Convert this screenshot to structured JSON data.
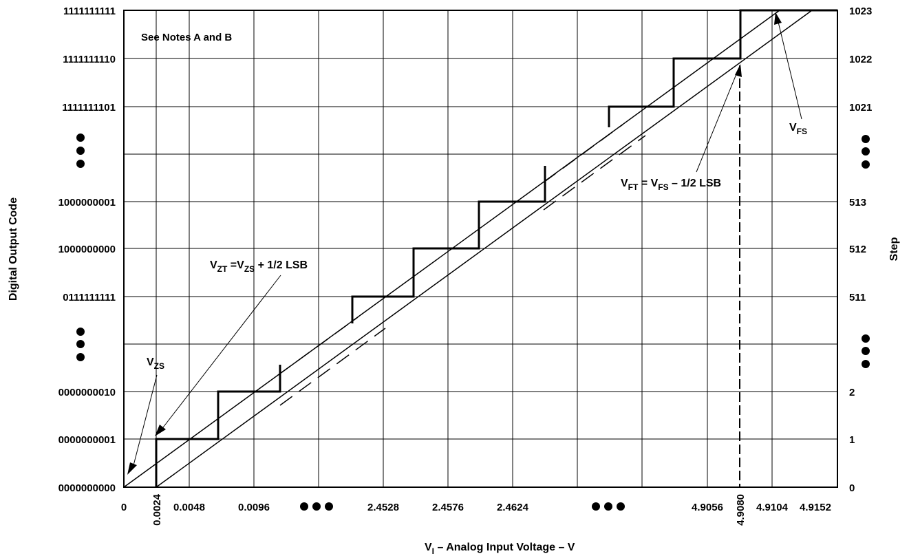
{
  "chart_data": {
    "type": "line",
    "title": "",
    "notes_label": "See Notes A and B",
    "xlabel": {
      "main": "V",
      "sub": "I",
      "rest": " – Analog Input Voltage – V"
    },
    "ylabel_left": "Digital Output Code",
    "ylabel_right": "Step",
    "x_ticks": [
      "0",
      "0.0024",
      "0.0048",
      "0.0096",
      "2.4528",
      "2.4576",
      "2.4624",
      "4.9056",
      "4.9080",
      "4.9104",
      "4.9152"
    ],
    "y_codes": [
      "0000000000",
      "0000000001",
      "0000000010",
      "0111111111",
      "1000000000",
      "1000000001",
      "1111111101",
      "1111111110",
      "1111111111"
    ],
    "y_steps": [
      "0",
      "1",
      "2",
      "511",
      "512",
      "513",
      "1021",
      "1022",
      "1023"
    ],
    "staircase": [
      {
        "step": 1,
        "x_start": 0.0024,
        "x_end": 0.0072
      },
      {
        "step": 2,
        "x_start": 0.0072,
        "x_end": 0.012
      },
      {
        "step": 511,
        "x_start": 2.448,
        "x_end": 2.4528
      },
      {
        "step": 512,
        "x_start": 2.4528,
        "x_end": 2.4576
      },
      {
        "step": 513,
        "x_start": 2.4576,
        "x_end": 2.4624
      },
      {
        "step": 1021,
        "x_start": 4.9008,
        "x_end": 4.9056
      },
      {
        "step": 1022,
        "x_start": 4.9056,
        "x_end": 4.908
      },
      {
        "step": 1023,
        "x_start": 4.908,
        "x_end": 4.9152
      }
    ],
    "annotations": [
      {
        "id": "vzs",
        "main": "V",
        "sub": "ZS",
        "rest": ""
      },
      {
        "id": "vzt",
        "main": "V",
        "sub": "ZT",
        "rest": " =V",
        "sub2": "ZS",
        "rest2": " + 1/2 LSB"
      },
      {
        "id": "vft",
        "main": "V",
        "sub": "FT",
        "rest": " = V",
        "sub2": "FS",
        "rest2": " – 1/2 LSB"
      },
      {
        "id": "vfs",
        "main": "V",
        "sub": "FS",
        "rest": ""
      }
    ],
    "grid": true,
    "legend": "none"
  }
}
